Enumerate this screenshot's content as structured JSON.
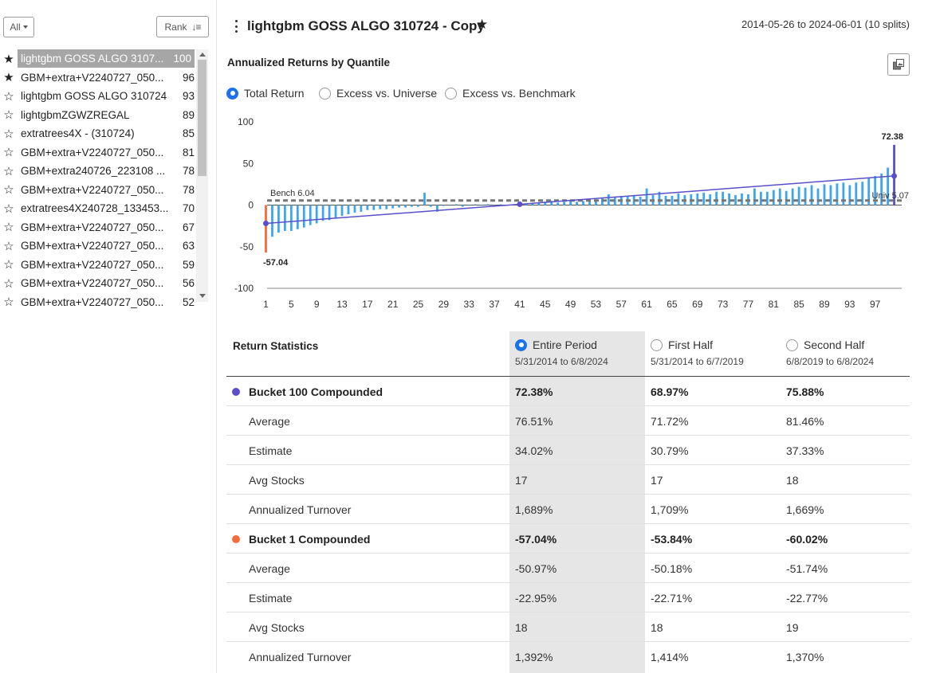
{
  "sidebar": {
    "filter_label": "All",
    "rank_label": "Rank",
    "items": [
      {
        "name": "lightgbm GOSS ALGO 3107...",
        "rank": "100",
        "star": "★",
        "selected": true
      },
      {
        "name": "GBM+extra+V2240727_050...",
        "rank": "96",
        "star": "★"
      },
      {
        "name": "lightgbm GOSS ALGO 310724",
        "rank": "93",
        "star": "☆"
      },
      {
        "name": "lightgbmZGWZREGAL",
        "rank": "89",
        "star": "☆"
      },
      {
        "name": "extratrees4X - (310724)",
        "rank": "85",
        "star": "☆"
      },
      {
        "name": "GBM+extra+V2240727_050...",
        "rank": "81",
        "star": "☆"
      },
      {
        "name": "GBM+extra240726_223108 ...",
        "rank": "78",
        "star": "☆"
      },
      {
        "name": "GBM+extra+V2240727_050...",
        "rank": "78",
        "star": "☆"
      },
      {
        "name": "extratrees4X240728_133453...",
        "rank": "70",
        "star": "☆"
      },
      {
        "name": "GBM+extra+V2240727_050...",
        "rank": "67",
        "star": "☆"
      },
      {
        "name": "GBM+extra+V2240727_050...",
        "rank": "63",
        "star": "☆"
      },
      {
        "name": "GBM+extra+V2240727_050...",
        "rank": "59",
        "star": "☆"
      },
      {
        "name": "GBM+extra+V2240727_050...",
        "rank": "56",
        "star": "☆"
      },
      {
        "name": "GBM+extra+V2240727_050...",
        "rank": "52",
        "star": "☆"
      }
    ]
  },
  "header": {
    "title": "lightgbm GOSS ALGO 310724 - Copy",
    "star": "★",
    "date_range": "2014-05-26 to 2024-06-01 (10 splits)"
  },
  "chart_section": {
    "title": "Annualized Returns by Quantile",
    "modes": [
      {
        "label": "Total Return",
        "selected": true
      },
      {
        "label": "Excess vs. Universe",
        "selected": false
      },
      {
        "label": "Excess vs. Benchmark",
        "selected": false
      }
    ]
  },
  "chart_data": {
    "type": "bar",
    "title": "Annualized Returns by Quantile",
    "xlabel": "",
    "ylabel": "",
    "ylim": [
      -100,
      100
    ],
    "yticks": [
      100,
      50,
      0,
      -50,
      -100
    ],
    "xticks": [
      1,
      5,
      9,
      13,
      17,
      21,
      25,
      29,
      33,
      37,
      41,
      45,
      49,
      53,
      57,
      61,
      65,
      69,
      73,
      77,
      81,
      85,
      89,
      93,
      97
    ],
    "x": [
      1,
      2,
      3,
      4,
      5,
      6,
      7,
      8,
      9,
      10,
      11,
      12,
      13,
      14,
      15,
      16,
      17,
      18,
      19,
      20,
      21,
      22,
      23,
      24,
      25,
      26,
      27,
      28,
      29,
      30,
      31,
      32,
      33,
      34,
      35,
      36,
      37,
      38,
      39,
      40,
      41,
      42,
      43,
      44,
      45,
      46,
      47,
      48,
      49,
      50,
      51,
      52,
      53,
      54,
      55,
      56,
      57,
      58,
      59,
      60,
      61,
      62,
      63,
      64,
      65,
      66,
      67,
      68,
      69,
      70,
      71,
      72,
      73,
      74,
      75,
      76,
      77,
      78,
      79,
      80,
      81,
      82,
      83,
      84,
      85,
      86,
      87,
      88,
      89,
      90,
      91,
      92,
      93,
      94,
      95,
      96,
      97,
      98,
      99,
      100
    ],
    "values": [
      -57.04,
      -38,
      -33,
      -31,
      -31,
      -29,
      -27,
      -24,
      -22,
      -19,
      -18,
      -15,
      -13,
      -11,
      -9,
      -8,
      -6,
      -6,
      -5,
      -5,
      -4,
      -3,
      -3,
      -2,
      -2,
      15,
      -2,
      -8,
      -1,
      0,
      1,
      -2,
      0,
      1,
      0,
      1,
      -1,
      1,
      0,
      1,
      0,
      1,
      2,
      3,
      4,
      5,
      3,
      4,
      6,
      4,
      5,
      6,
      7,
      8,
      13,
      9,
      11,
      10,
      12,
      10,
      20,
      12,
      16,
      11,
      11,
      14,
      12,
      13,
      14,
      15,
      13,
      16,
      16,
      14,
      12,
      14,
      13,
      20,
      16,
      16,
      18,
      20,
      17,
      20,
      22,
      21,
      24,
      20,
      25,
      24,
      26,
      27,
      24,
      27,
      28,
      32,
      35,
      38,
      45,
      72.38
    ],
    "highlight": {
      "bucket_1": {
        "value": -57.04,
        "label": "-57.04",
        "color": "#f26b3a"
      },
      "bucket_100": {
        "value": 72.38,
        "label": "72.38",
        "color": "#5b4fc9"
      }
    },
    "reference_lines": [
      {
        "label": "Bench 6.04",
        "value": 6.04
      },
      {
        "label": "Univ 5.07",
        "value": 5.07
      }
    ],
    "trend_line": {
      "from": {
        "x": 1,
        "y": -22
      },
      "mid": {
        "x": 41,
        "y": 1
      },
      "to": {
        "x": 100,
        "y": 35
      }
    },
    "bar_color": "#3ea6f0",
    "grid": false
  },
  "stats": {
    "title": "Return Statistics",
    "periods": [
      {
        "label": "Entire Period",
        "range": "5/31/2014 to 6/8/2024",
        "selected": true
      },
      {
        "label": "First Half",
        "range": "5/31/2014 to 6/7/2019",
        "selected": false
      },
      {
        "label": "Second Half",
        "range": "6/8/2019 to 6/8/2024",
        "selected": false
      }
    ],
    "rows": [
      {
        "label": "Bucket 100 Compounded",
        "values": [
          "72.38%",
          "68.97%",
          "75.88%"
        ],
        "bold": true,
        "dot_color": "#5b4fc9"
      },
      {
        "label": "Average",
        "values": [
          "76.51%",
          "71.72%",
          "81.46%"
        ]
      },
      {
        "label": "Estimate",
        "values": [
          "34.02%",
          "30.79%",
          "37.33%"
        ]
      },
      {
        "label": "Avg Stocks",
        "values": [
          "17",
          "17",
          "18"
        ]
      },
      {
        "label": "Annualized Turnover",
        "values": [
          "1,689%",
          "1,709%",
          "1,669%"
        ]
      },
      {
        "label": "Bucket 1 Compounded",
        "values": [
          "-57.04%",
          "-53.84%",
          "-60.02%"
        ],
        "bold": true,
        "dot_color": "#f26b3a"
      },
      {
        "label": "Average",
        "values": [
          "-50.97%",
          "-50.18%",
          "-51.74%"
        ]
      },
      {
        "label": "Estimate",
        "values": [
          "-22.95%",
          "-22.71%",
          "-22.77%"
        ]
      },
      {
        "label": "Avg Stocks",
        "values": [
          "18",
          "18",
          "19"
        ]
      },
      {
        "label": "Annualized Turnover",
        "values": [
          "1,392%",
          "1,414%",
          "1,370%"
        ]
      }
    ]
  }
}
